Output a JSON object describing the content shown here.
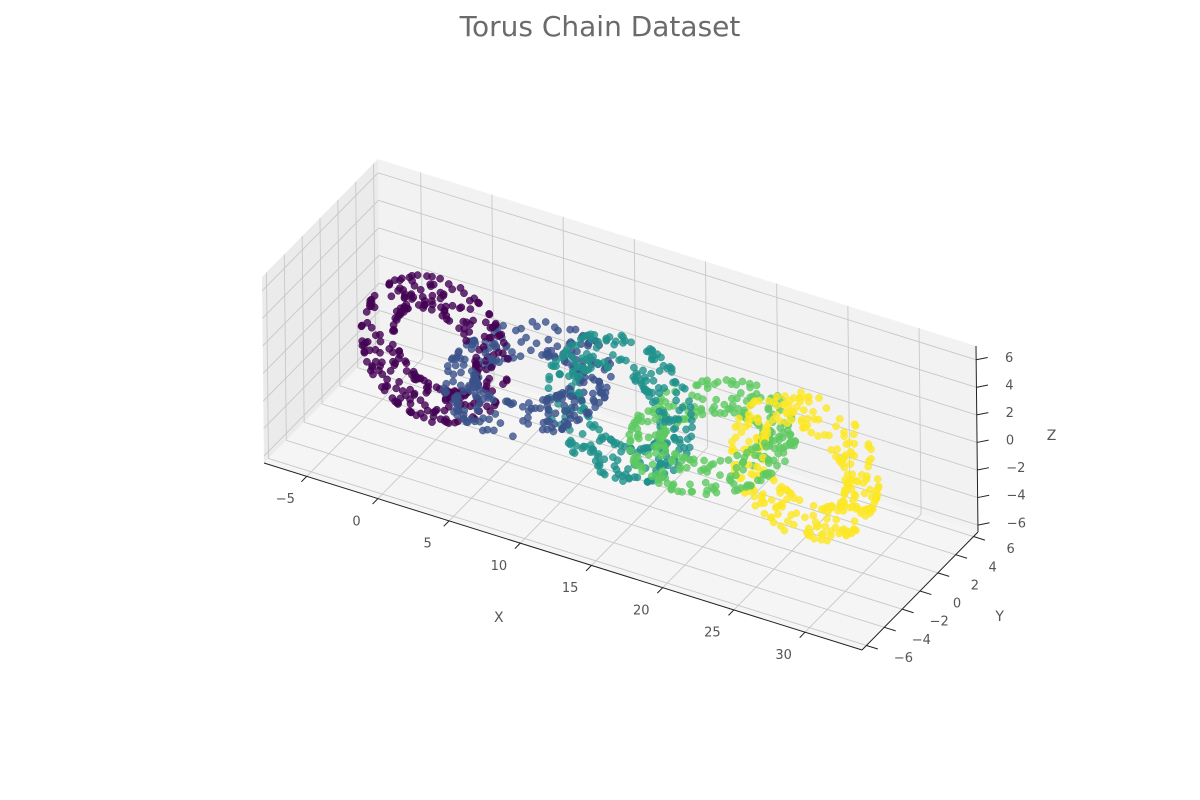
{
  "chart_data": {
    "type": "scatter",
    "title": "Torus Chain Dataset",
    "xlabel": "X",
    "ylabel": "Y",
    "zlabel": "Z",
    "xlim": [
      -8,
      34
    ],
    "ylim": [
      -6.5,
      6.5
    ],
    "zlim": [
      -6.5,
      7
    ],
    "xticks": [
      -5,
      0,
      5,
      10,
      15,
      20,
      25,
      30
    ],
    "yticks": [
      -6,
      -4,
      -2,
      0,
      2,
      4,
      6
    ],
    "zticks": [
      -6,
      -4,
      -2,
      0,
      2,
      4,
      6
    ],
    "grid": true,
    "colormap": "viridis",
    "marker_alpha": 0.55,
    "series": [
      {
        "color": "#440154",
        "plane": "xz",
        "center": [
          0,
          0,
          0
        ],
        "major_radius": 4,
        "minor_radius": 1,
        "n_points": 280
      },
      {
        "color": "#3b528b",
        "plane": "xy",
        "center": [
          6.5,
          0,
          0
        ],
        "major_radius": 4,
        "minor_radius": 1,
        "n_points": 280
      },
      {
        "color": "#21918c",
        "plane": "xz",
        "center": [
          13,
          0,
          0
        ],
        "major_radius": 4,
        "minor_radius": 1,
        "n_points": 280
      },
      {
        "color": "#5ec962",
        "plane": "xy",
        "center": [
          19.5,
          0,
          0
        ],
        "major_radius": 4,
        "minor_radius": 1,
        "n_points": 280
      },
      {
        "color": "#fde725",
        "plane": "xz",
        "center": [
          26,
          0,
          0
        ],
        "major_radius": 4,
        "minor_radius": 1,
        "n_points": 280
      }
    ]
  }
}
